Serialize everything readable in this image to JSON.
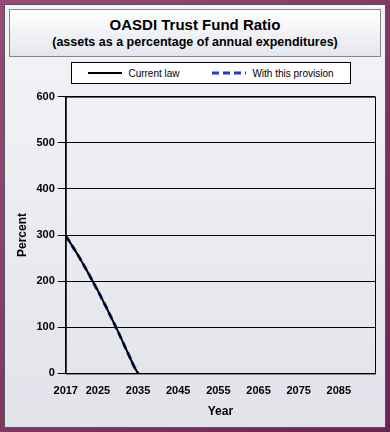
{
  "chart_data": {
    "type": "line",
    "title": "OASDI Trust Fund Ratio",
    "subtitle": "(assets as a percentage of annual expenditures)",
    "x_label": "Year",
    "y_label": "Percent",
    "x": [
      2017,
      2018,
      2019,
      2020,
      2021,
      2022,
      2023,
      2024,
      2025,
      2026,
      2027,
      2028,
      2029,
      2030,
      2031,
      2032,
      2033,
      2034,
      2035
    ],
    "series": [
      {
        "name": "Current law",
        "color": "#000000",
        "line_style": "solid",
        "values": [
          298,
          285,
          271,
          257,
          242,
          227,
          211,
          195,
          179,
          162,
          145,
          127,
          109,
          91,
          72,
          53,
          34,
          15,
          0
        ]
      },
      {
        "name": "With this provision",
        "color": "#1f3fc4",
        "line_style": "dashed",
        "values": [
          298,
          285,
          271,
          257,
          242,
          227,
          211,
          195,
          179,
          162,
          145,
          127,
          109,
          91,
          72,
          53,
          34,
          15,
          0
        ]
      }
    ],
    "xlim": [
      2017,
      2094
    ],
    "xticks": [
      2017,
      2025,
      2035,
      2045,
      2055,
      2065,
      2075,
      2085
    ],
    "ylim": [
      0,
      600
    ],
    "yticks": [
      0,
      100,
      200,
      300,
      400,
      500,
      600
    ],
    "grid": true,
    "legend": "top"
  }
}
